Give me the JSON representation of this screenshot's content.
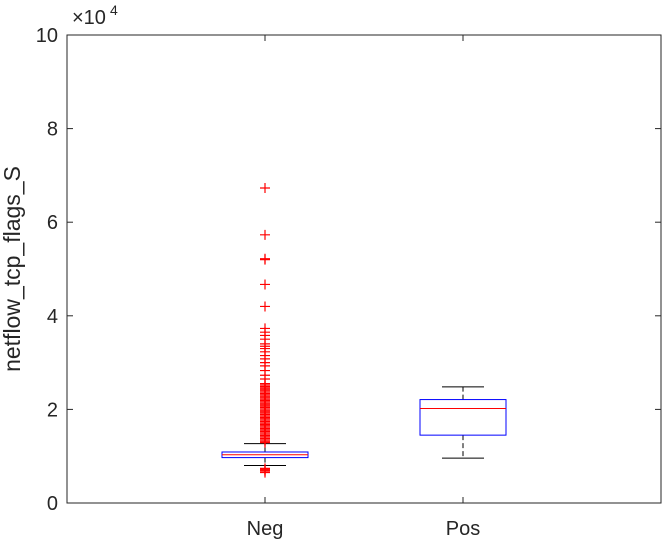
{
  "chart_data": {
    "type": "box",
    "title": "",
    "xlabel": "",
    "ylabel": "netflow_tcp_flags_S",
    "exponent_label": {
      "base": "×10",
      "power": "4"
    },
    "ylim": [
      0,
      100000
    ],
    "yticks": [
      0,
      20000,
      40000,
      60000,
      80000,
      100000
    ],
    "ytick_labels": [
      "0",
      "2",
      "4",
      "6",
      "8",
      "10"
    ],
    "grid": false,
    "categories": [
      "Neg",
      "Pos"
    ],
    "boxes": [
      {
        "category": "Neg",
        "whisker_low": 8000,
        "q1": 9700,
        "median": 10300,
        "q3": 10900,
        "whisker_high": 12700,
        "outliers": [
          6500,
          6800,
          7000,
          7200,
          7400,
          12900,
          13200,
          13500,
          13800,
          14100,
          14400,
          14700,
          15000,
          15300,
          15600,
          15900,
          16200,
          16500,
          16800,
          17100,
          17400,
          17700,
          18000,
          18300,
          18600,
          18900,
          19200,
          19500,
          19800,
          20100,
          20400,
          20700,
          21000,
          21300,
          21600,
          21900,
          22200,
          22500,
          22800,
          23100,
          23400,
          23700,
          24000,
          24300,
          24600,
          24900,
          25200,
          25500,
          26500,
          27300,
          28300,
          29300,
          30000,
          30800,
          31500,
          32300,
          33000,
          33500,
          34000,
          35000,
          35800,
          36500,
          37300,
          42000,
          46700,
          52000,
          52200,
          57300,
          67300
        ]
      },
      {
        "category": "Pos",
        "whisker_low": 9600,
        "q1": 14500,
        "median": 20200,
        "q3": 22100,
        "whisker_high": 24800,
        "outliers": []
      }
    ],
    "colors": {
      "box": "#0000ff",
      "median": "#ff0000",
      "whisker": "#000000",
      "outlier": "#ff0000",
      "axis": "#262626"
    }
  }
}
